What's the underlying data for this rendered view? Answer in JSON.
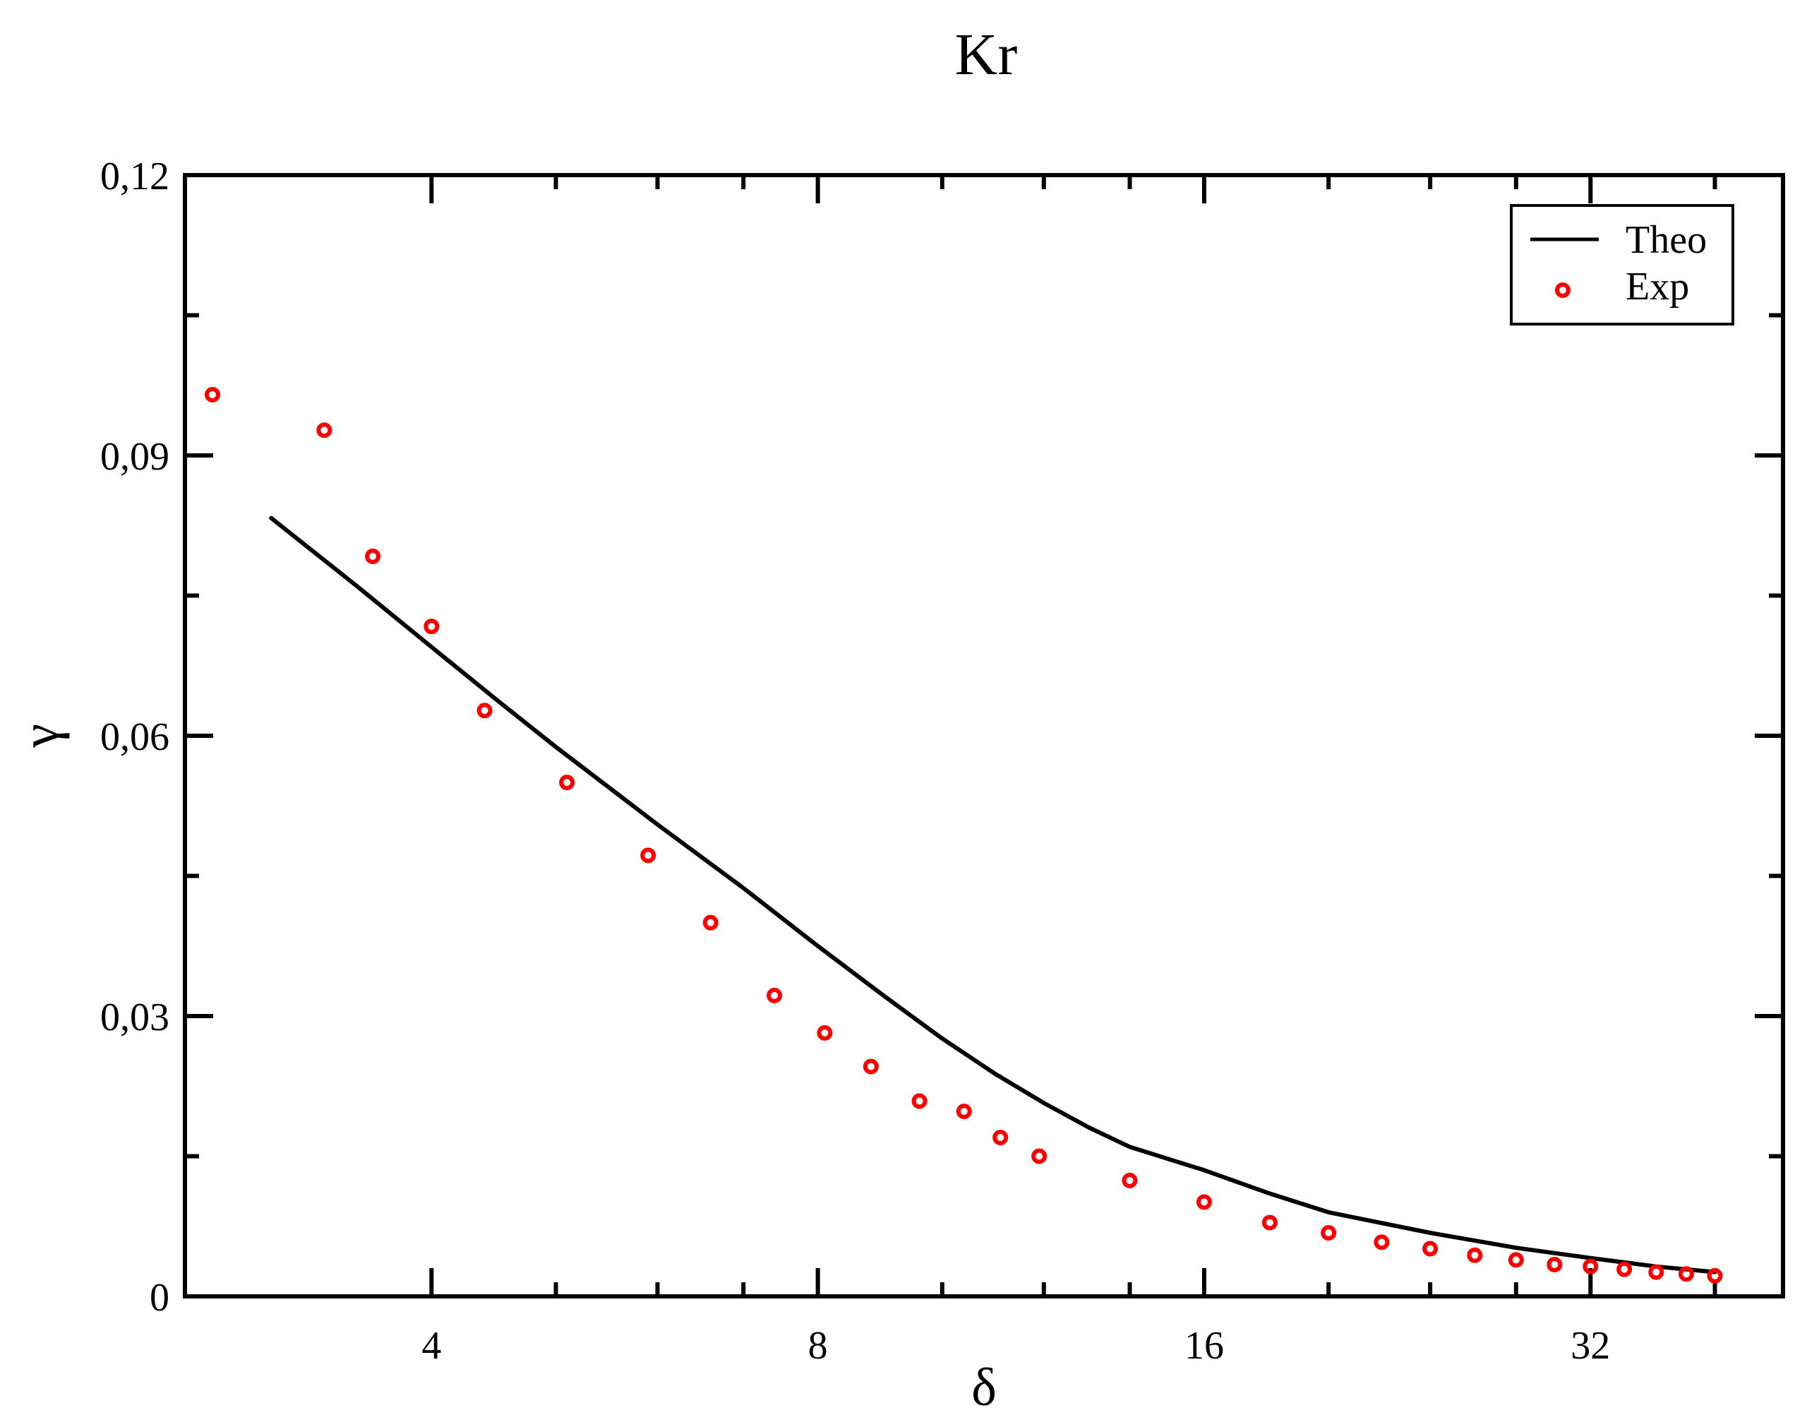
{
  "chart_data": {
    "type": "scatter",
    "title": "Kr",
    "xlabel": "δ",
    "ylabel": "γ",
    "xscale": "log2",
    "xlim": [
      2.57,
      45.2
    ],
    "ylim": [
      0,
      0.12
    ],
    "xticks": [
      4,
      8,
      16,
      32
    ],
    "xtick_labels": [
      "4",
      "8",
      "16",
      "32"
    ],
    "yticks": [
      0,
      0.03,
      0.06,
      0.09,
      0.12
    ],
    "ytick_labels": [
      "0",
      "0,03",
      "0,06",
      "0,09",
      "0,12"
    ],
    "grid": false,
    "legend_position": "top-right",
    "series": [
      {
        "name": "Theo",
        "kind": "line",
        "color": "#000000",
        "x": [
          3.0,
          3.5,
          4.0,
          4.5,
          5.0,
          6.0,
          7.0,
          8.0,
          9.0,
          10.0,
          11.0,
          12.0,
          13.0,
          14.0,
          16.0,
          18.0,
          20.0,
          24.0,
          28.0,
          32.0,
          36.0,
          40.0
        ],
        "y": [
          0.0833,
          0.076,
          0.0695,
          0.0638,
          0.0588,
          0.0505,
          0.0437,
          0.0375,
          0.0322,
          0.0276,
          0.0238,
          0.0207,
          0.0181,
          0.016,
          0.0135,
          0.011,
          0.009,
          0.0068,
          0.0052,
          0.0041,
          0.0032,
          0.0026
        ]
      },
      {
        "name": "Exp",
        "kind": "scatter",
        "color": "#ff0000",
        "x": [
          2.7,
          3.3,
          3.6,
          4.0,
          4.4,
          5.1,
          5.9,
          6.6,
          7.4,
          8.1,
          8.8,
          9.6,
          10.4,
          11.1,
          11.9,
          14.0,
          16.0,
          18.0,
          20.0,
          22.0,
          24.0,
          26.0,
          28.0,
          30.0,
          32.0,
          34.0,
          36.0,
          38.0,
          40.0
        ],
        "y": [
          0.0965,
          0.0927,
          0.0792,
          0.0717,
          0.0627,
          0.055,
          0.0472,
          0.04,
          0.0322,
          0.0282,
          0.0246,
          0.0209,
          0.0198,
          0.017,
          0.015,
          0.0124,
          0.0101,
          0.0079,
          0.0068,
          0.0058,
          0.0051,
          0.0044,
          0.0039,
          0.0034,
          0.0032,
          0.0029,
          0.0026,
          0.0024,
          0.0022
        ]
      }
    ]
  }
}
